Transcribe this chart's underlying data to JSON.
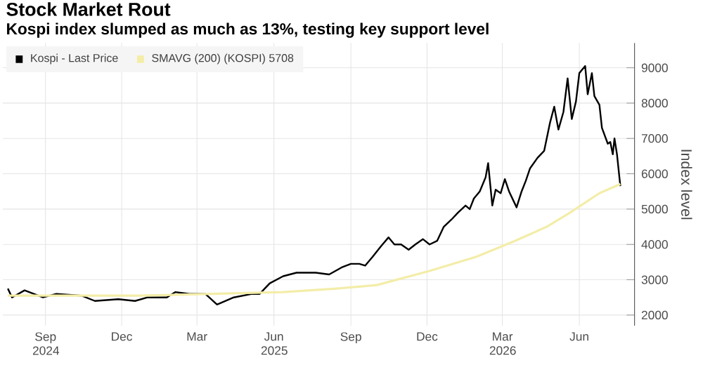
{
  "chart_data": {
    "type": "line",
    "title": "Stock Market Rout",
    "subtitle": "Kospi index slumped as much as 13%, testing key support level",
    "ylabel": "Index level",
    "xlim": [
      "2024-07-26",
      "2026-08-20"
    ],
    "xticks": [
      {
        "value": "2024-09-15",
        "label": "Sep 2024"
      },
      {
        "value": "2024-12-15",
        "label": "Dec"
      },
      {
        "value": "2025-03-15",
        "label": "Mar"
      },
      {
        "value": "2025-06-15",
        "label": "Jun 2025"
      },
      {
        "value": "2025-09-15",
        "label": "Sep"
      },
      {
        "value": "2025-12-15",
        "label": "Dec"
      },
      {
        "value": "2026-03-15",
        "label": "Mar 2026"
      },
      {
        "value": "2026-06-15",
        "label": "Jun"
      }
    ],
    "ylim": [
      1700,
      9700
    ],
    "yticks": [
      2000,
      3000,
      4000,
      5000,
      6000,
      7000,
      8000,
      9000
    ],
    "grid": true,
    "legend": "top left",
    "series": [
      {
        "name": "Kospi - Last Price",
        "color": "#000000",
        "x": [
          "2024-08-01",
          "2024-08-06",
          "2024-08-21",
          "2024-09-12",
          "2024-09-28",
          "2024-10-28",
          "2024-11-13",
          "2024-12-11",
          "2024-12-31",
          "2025-01-15",
          "2025-02-07",
          "2025-02-17",
          "2025-03-06",
          "2025-03-25",
          "2025-04-08",
          "2025-04-28",
          "2025-05-20",
          "2025-05-29",
          "2025-06-10",
          "2025-06-26",
          "2025-07-12",
          "2025-08-04",
          "2025-08-20",
          "2025-09-04",
          "2025-09-15",
          "2025-09-25",
          "2025-10-02",
          "2025-10-11",
          "2025-10-21",
          "2025-10-30",
          "2025-11-06",
          "2025-11-14",
          "2025-11-23",
          "2025-12-01",
          "2025-12-10",
          "2025-12-18",
          "2025-12-27",
          "2026-01-04",
          "2026-01-13",
          "2026-01-21",
          "2026-01-30",
          "2026-02-04",
          "2026-02-09",
          "2026-02-16",
          "2026-02-23",
          "2026-02-26",
          "2026-03-03",
          "2026-03-07",
          "2026-03-13",
          "2026-03-18",
          "2026-03-23",
          "2026-04-01",
          "2026-04-07",
          "2026-04-12",
          "2026-04-17",
          "2026-04-26",
          "2026-05-04",
          "2026-05-11",
          "2026-05-16",
          "2026-05-21",
          "2026-05-27",
          "2026-06-01",
          "2026-06-06",
          "2026-06-11",
          "2026-06-15",
          "2026-06-22",
          "2026-06-25",
          "2026-06-30",
          "2026-07-03",
          "2026-07-09",
          "2026-07-12",
          "2026-07-19",
          "2026-07-22",
          "2026-07-25",
          "2026-07-27",
          "2026-07-30",
          "2026-08-03"
        ],
        "values": [
          2750,
          2500,
          2700,
          2500,
          2600,
          2550,
          2400,
          2450,
          2400,
          2500,
          2500,
          2650,
          2600,
          2600,
          2300,
          2500,
          2600,
          2600,
          2900,
          3100,
          3200,
          3200,
          3150,
          3350,
          3450,
          3450,
          3400,
          3650,
          3950,
          4200,
          4000,
          4000,
          3850,
          4000,
          4150,
          4000,
          4100,
          4500,
          4700,
          4900,
          5100,
          5000,
          5300,
          5500,
          5900,
          6300,
          5100,
          5550,
          5450,
          5850,
          5500,
          5050,
          5500,
          5800,
          6150,
          6450,
          6650,
          7450,
          7900,
          7250,
          7750,
          8700,
          7550,
          8050,
          8850,
          9050,
          8250,
          8850,
          8200,
          7950,
          7300,
          6850,
          6900,
          6550,
          7000,
          6550,
          5650
        ]
      },
      {
        "name": "SMAVG (200) (KOSPI) 5708",
        "color": "#f3eda8",
        "x": [
          "2024-08-01",
          "2025-01-07",
          "2025-04-01",
          "2025-06-26",
          "2025-08-29",
          "2025-10-16",
          "2025-12-18",
          "2026-02-12",
          "2026-03-30",
          "2026-05-07",
          "2026-06-04",
          "2026-07-09",
          "2026-08-03"
        ],
        "values": [
          2550,
          2550,
          2600,
          2650,
          2750,
          2850,
          3250,
          3650,
          4100,
          4500,
          4900,
          5450,
          5708
        ]
      }
    ]
  }
}
